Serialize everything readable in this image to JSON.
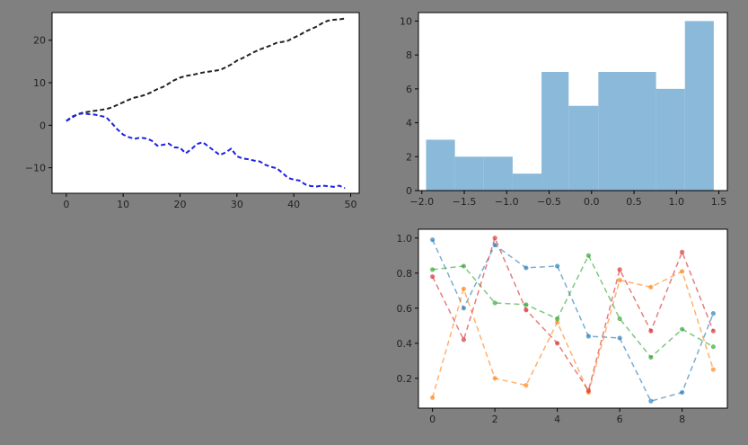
{
  "figure": {
    "background": "#808080"
  },
  "chart_data": [
    {
      "type": "line",
      "xlim": [
        -2.5,
        51.5
      ],
      "ylim": [
        -16,
        26.5
      ],
      "xticks": [
        "0",
        "10",
        "20",
        "30",
        "40",
        "50"
      ],
      "yticks": [
        "20",
        "10",
        "0",
        "−10"
      ],
      "x": [
        0,
        1,
        2,
        3,
        4,
        5,
        6,
        7,
        8,
        9,
        10,
        11,
        12,
        13,
        14,
        15,
        16,
        17,
        18,
        19,
        20,
        21,
        22,
        23,
        24,
        25,
        26,
        27,
        28,
        29,
        30,
        31,
        32,
        33,
        34,
        35,
        36,
        37,
        38,
        39,
        40,
        41,
        42,
        43,
        44,
        45,
        46,
        47,
        48,
        49
      ],
      "series": [
        {
          "color": "#222222",
          "linestyle": "dashed",
          "values": [
            1,
            1.8,
            2.6,
            3.0,
            3.2,
            3.4,
            3.6,
            3.8,
            4.2,
            4.8,
            5.4,
            6.0,
            6.5,
            6.8,
            7.2,
            7.8,
            8.5,
            9.0,
            9.8,
            10.6,
            11.2,
            11.6,
            11.8,
            12.1,
            12.4,
            12.6,
            12.8,
            13.0,
            13.6,
            14.3,
            15.2,
            15.8,
            16.5,
            17.2,
            17.8,
            18.3,
            18.8,
            19.4,
            19.6,
            19.9,
            20.6,
            21.2,
            22.0,
            22.6,
            23.2,
            24.0,
            24.6,
            24.8,
            24.9,
            25.1
          ]
        },
        {
          "color": "#1f1fe6",
          "linestyle": "dashed",
          "values": [
            1,
            2,
            2.6,
            2.8,
            2.6,
            2.5,
            2.2,
            1.9,
            0.5,
            -1.0,
            -2.2,
            -2.8,
            -3.2,
            -2.9,
            -3.1,
            -3.6,
            -4.8,
            -4.6,
            -4.3,
            -5.2,
            -5.3,
            -6.6,
            -5.6,
            -4.4,
            -4.0,
            -5.0,
            -6.0,
            -7.0,
            -6.4,
            -5.5,
            -7.3,
            -7.8,
            -8.0,
            -8.3,
            -8.5,
            -9.3,
            -9.8,
            -10.1,
            -11.2,
            -12.4,
            -12.8,
            -13.0,
            -13.9,
            -14.3,
            -14.4,
            -14.2,
            -14.3,
            -14.5,
            -14.2,
            -14.8
          ]
        }
      ]
    },
    {
      "type": "bar",
      "xlim": [
        -2.04,
        1.6
      ],
      "ylim": [
        0,
        10.5
      ],
      "xticks": [
        "−2.0",
        "−1.5",
        "−1.0",
        "−0.5",
        "0.0",
        "0.5",
        "1.0",
        "1.5"
      ],
      "yticks": [
        "0",
        "2",
        "4",
        "6",
        "8",
        "10"
      ],
      "bin_edges": [
        -1.95,
        -1.61,
        -1.27,
        -0.93,
        -0.59,
        -0.27,
        0.08,
        0.42,
        0.76,
        1.1,
        1.44
      ],
      "values": [
        3,
        2,
        2,
        1,
        7,
        5,
        7,
        7,
        6,
        10
      ],
      "color": "#8ab9da"
    },
    {
      "type": "line",
      "xlim": [
        -0.45,
        9.45
      ],
      "ylim": [
        0.03,
        1.05
      ],
      "xticks": [
        "0",
        "2",
        "4",
        "6",
        "8"
      ],
      "yticks": [
        "1.0",
        "0.8",
        "0.6",
        "0.4",
        "0.2"
      ],
      "x": [
        0,
        1,
        2,
        3,
        4,
        5,
        6,
        7,
        8,
        9
      ],
      "series": [
        {
          "color": "#1f77b4",
          "linestyle": "dashed",
          "marker": "dot",
          "values": [
            0.99,
            0.6,
            0.96,
            0.83,
            0.84,
            0.44,
            0.43,
            0.07,
            0.12,
            0.57
          ]
        },
        {
          "color": "#ff7f0e",
          "linestyle": "dashed",
          "marker": "dot",
          "values": [
            0.09,
            0.71,
            0.2,
            0.16,
            0.52,
            0.12,
            0.76,
            0.72,
            0.81,
            0.25
          ]
        },
        {
          "color": "#2ca02c",
          "linestyle": "dashed",
          "marker": "dot",
          "values": [
            0.82,
            0.84,
            0.63,
            0.62,
            0.54,
            0.9,
            0.54,
            0.32,
            0.48,
            0.38
          ]
        },
        {
          "color": "#d62728",
          "linestyle": "dashed",
          "marker": "dot",
          "values": [
            0.78,
            0.42,
            1.0,
            0.59,
            0.4,
            0.13,
            0.82,
            0.47,
            0.92,
            0.47
          ]
        }
      ]
    }
  ]
}
